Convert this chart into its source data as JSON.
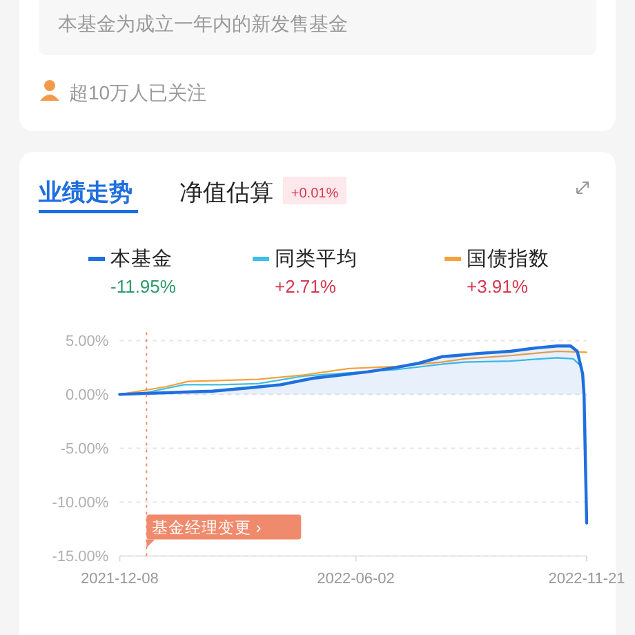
{
  "chart_data": {
    "type": "line",
    "title": "业绩走势",
    "subtitle": "净值估算",
    "annotations": [
      "本基金为成立一年内的新发售基金",
      "超10万人已关注",
      "+0.01%",
      "-11.95%",
      "+2.71%",
      "+3.91%"
    ],
    "series": [
      {
        "name": "本基金",
        "type": "area",
        "color": "#1f6fde",
        "x": [
          "2021-12-08",
          "2021-12-29",
          "2022-02-15",
          "2022-03-14",
          "2022-04-07",
          "2022-05-01",
          "2022-05-22",
          "2022-06-11",
          "2022-07-02",
          "2022-07-19",
          "2022-08-05",
          "2022-08-15",
          "2022-09-01",
          "2022-09-25",
          "2022-10-13",
          "2022-10-30",
          "2022-11-09",
          "2022-11-14",
          "2022-11-18",
          "2022-11-19",
          "2022-11-21"
        ],
        "values": [
          0,
          0.1,
          0.3,
          0.6,
          0.9,
          1.5,
          1.8,
          2.1,
          2.5,
          2.9,
          3.5,
          3.6,
          3.8,
          4.0,
          4.3,
          4.5,
          4.5,
          4.0,
          1.9,
          0,
          -11.95
        ]
      },
      {
        "name": "同类平均",
        "color": "#3cc0e8",
        "x": [
          "2021-12-08",
          "2021-12-29",
          "2022-01-25",
          "2022-02-21",
          "2022-03-21",
          "2022-04-24",
          "2022-05-28",
          "2022-07-02",
          "2022-08-05",
          "2022-08-22",
          "2022-09-25",
          "2022-10-30",
          "2022-11-11",
          "2022-11-16"
        ],
        "values": [
          0,
          0.2,
          0.9,
          0.9,
          1.0,
          1.7,
          2.0,
          2.3,
          2.8,
          3.0,
          3.1,
          3.4,
          3.3,
          2.71
        ]
      },
      {
        "name": "国债指数",
        "color": "#f5a23c",
        "x": [
          "2021-12-08",
          "2022-01-11",
          "2022-01-28",
          "2022-03-21",
          "2022-04-24",
          "2022-05-28",
          "2022-07-02",
          "2022-08-05",
          "2022-08-22",
          "2022-09-25",
          "2022-10-30",
          "2022-11-21"
        ],
        "values": [
          0,
          0.7,
          1.2,
          1.4,
          1.8,
          2.4,
          2.6,
          3.0,
          3.3,
          3.6,
          4.0,
          3.91
        ]
      }
    ],
    "xlim": [
      "2021-12-08",
      "2022-11-21"
    ],
    "xticks": [
      {
        "value": "2021-12-08",
        "label": "2021-12-08"
      },
      {
        "value": "2022-06-02",
        "label": "2022-06-02"
      },
      {
        "value": "2022-11-21",
        "label": "2022-11-21"
      }
    ],
    "ylim": [
      -15,
      5
    ],
    "yticks": [
      {
        "value": 5,
        "label": "5.00%"
      },
      {
        "value": 0,
        "label": "0.00%"
      },
      {
        "value": -5,
        "label": "-5.00%"
      },
      {
        "value": -10,
        "label": "-10.00%"
      },
      {
        "value": -15,
        "label": "-15.00%"
      }
    ],
    "ref_lines": [
      {
        "axis": "x",
        "value": "2021-12-28",
        "label": "基金经理变更 ›",
        "color": "#f08a6c",
        "line_style": "dashed"
      }
    ],
    "grid": "y",
    "legend": "top",
    "marker": "none",
    "line_style": "solid"
  }
}
